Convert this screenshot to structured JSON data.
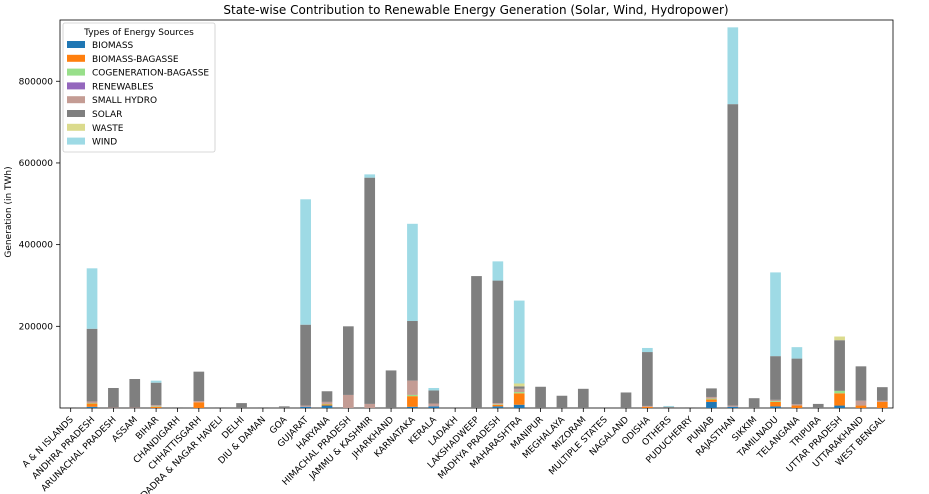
{
  "chart_data": {
    "type": "bar",
    "stacked": true,
    "title": "State-wise Contribution to Renewable Energy Generation (Solar, Wind, Hydropower)",
    "xlabel": "",
    "ylabel": "Generation (in TWh)",
    "ylim": [
      0,
      950000
    ],
    "yticks": [
      200000,
      400000,
      600000,
      800000
    ],
    "ytick_labels": [
      "200000",
      "400000",
      "600000",
      "800000"
    ],
    "grid": false,
    "legend_title": "Types of Energy Sources",
    "legend_position": "upper-left",
    "categories": [
      "A & N ISLANDS",
      "ANDHRA PRADESH",
      "ARUNACHAL PRADESH",
      "ASSAM",
      "BIHAR",
      "CHANDIGARH",
      "CHHATTISGARH",
      "DADRA & NAGAR HAVELI",
      "DELHI",
      "DIU & DAMAN",
      "GOA",
      "GUJARAT",
      "HARYANA",
      "HIMACHAL PRADESH",
      "JAMMU & KASHMIR",
      "JHARKHAND",
      "KARNATAKA",
      "KERALA",
      "LADAKH",
      "LAKSHADWEEP",
      "MADHYA PRADESH",
      "MAHARASHTRA",
      "MANIPUR",
      "MEGHALAYA",
      "MIZORAM",
      "MULTIPLE STATES",
      "NAGALAND",
      "ODISHA",
      "OTHERS",
      "PUDUCHERRY",
      "PUNJAB",
      "RAJASTHAN",
      "SIKKIM",
      "TAMILNADU",
      "TELANGANA",
      "TRIPURA",
      "UTTAR PRADESH",
      "UTTARAKHAND",
      "WEST BENGAL"
    ],
    "bar_categories": [
      "A & N ISLANDS",
      "ANDHRA PRADESH",
      "ARUNACHAL PRADESH",
      "ASSAM",
      "BIHAR",
      "CHANDIGARH",
      "CHHATTISGARH",
      "DADRA & NAGAR HAVELI",
      "DELHI",
      "DIU & DAMAN",
      "GOA",
      "GUJARAT",
      "HARYANA",
      "HIMACHAL PRADESH",
      "JAMMU & KASHMIR",
      "JHARKHAND",
      "KARNATAKA",
      "KERALA",
      "LADAKH",
      "LAKSHADWEEP",
      "MADHYA PRADESH",
      "MAHARASHTRA",
      "MANIPUR",
      "MEGHALAYA",
      "MIZORAM",
      "MULTIPLE STATES",
      "NAGALAND",
      "ODISHA",
      "OTHERS",
      "PUDUCHERRY",
      "PUNJAB",
      "RAJASTHAN",
      "SIKKIM",
      "TAMILNADU",
      "TELANGANA",
      "TRIPURA",
      "UTTAR PRADESH",
      "UTTARAKHAND",
      "WEST BENGAL"
    ],
    "series": [
      {
        "name": "BIOMASS",
        "color": "#1f77b4",
        "values": [
          0,
          3000,
          0,
          0,
          0,
          0,
          0,
          0,
          0,
          0,
          0,
          3000,
          6000,
          0,
          0,
          0,
          3000,
          4000,
          0,
          0,
          4000,
          8000,
          0,
          0,
          0,
          0,
          0,
          0,
          0,
          0,
          15000,
          3000,
          0,
          4000,
          0,
          0,
          6000,
          0,
          0
        ]
      },
      {
        "name": "BIOMASS-BAGASSE",
        "color": "#ff7f0e",
        "values": [
          0,
          8000,
          0,
          0,
          3000,
          0,
          14000,
          0,
          0,
          0,
          0,
          0,
          3000,
          0,
          0,
          0,
          26000,
          0,
          0,
          0,
          4000,
          28000,
          0,
          0,
          0,
          0,
          0,
          3000,
          0,
          0,
          6000,
          0,
          0,
          11000,
          6000,
          0,
          30000,
          6000,
          15000
        ]
      },
      {
        "name": "COGENERATION-BAGASSE",
        "color": "#98df8a",
        "values": [
          0,
          1000,
          0,
          0,
          1000,
          0,
          0,
          0,
          0,
          0,
          0,
          0,
          1000,
          0,
          0,
          0,
          3000,
          0,
          0,
          0,
          1000,
          3000,
          0,
          0,
          0,
          0,
          0,
          0,
          0,
          0,
          2000,
          0,
          0,
          2000,
          0,
          0,
          6000,
          0,
          0
        ]
      },
      {
        "name": "RENEWABLES",
        "color": "#9467bd",
        "values": [
          0,
          0,
          0,
          0,
          0,
          0,
          0,
          0,
          0,
          0,
          0,
          0,
          0,
          0,
          0,
          0,
          0,
          0,
          0,
          0,
          0,
          0,
          0,
          0,
          0,
          0,
          0,
          0,
          0,
          0,
          0,
          0,
          0,
          0,
          0,
          0,
          0,
          0,
          0
        ]
      },
      {
        "name": "SMALL HYDRO",
        "color": "#c49c94",
        "values": [
          0,
          4000,
          1000,
          1000,
          3000,
          0,
          3000,
          0,
          0,
          0,
          0,
          3000,
          5000,
          32000,
          10000,
          0,
          35000,
          7000,
          0,
          0,
          3000,
          8000,
          0,
          0,
          0,
          0,
          0,
          2000,
          0,
          0,
          4000,
          3000,
          0,
          3000,
          3000,
          0,
          0,
          12000,
          3000
        ]
      },
      {
        "name": "SOLAR",
        "color": "#7f7f7f",
        "values": [
          2000,
          178000,
          48000,
          70000,
          55000,
          2000,
          72000,
          2000,
          12000,
          2000,
          4000,
          198000,
          26000,
          168000,
          554000,
          92000,
          146000,
          32000,
          0,
          323000,
          300000,
          6000,
          52000,
          30000,
          47000,
          0,
          38000,
          132000,
          3000,
          2000,
          21000,
          738000,
          24000,
          107000,
          112000,
          10000,
          124000,
          84000,
          33000
        ]
      },
      {
        "name": "WASTE",
        "color": "#dbdb8d",
        "values": [
          0,
          0,
          0,
          0,
          0,
          0,
          0,
          0,
          0,
          0,
          0,
          0,
          0,
          0,
          0,
          0,
          0,
          0,
          0,
          0,
          0,
          7000,
          0,
          0,
          0,
          0,
          0,
          0,
          0,
          0,
          0,
          0,
          0,
          0,
          0,
          0,
          9000,
          0,
          0
        ]
      },
      {
        "name": "WIND",
        "color": "#9edae5",
        "values": [
          0,
          148000,
          0,
          0,
          5000,
          0,
          0,
          0,
          0,
          0,
          0,
          307000,
          0,
          0,
          8000,
          0,
          238000,
          6000,
          0,
          0,
          47000,
          203000,
          0,
          0,
          0,
          0,
          0,
          10000,
          2000,
          0,
          0,
          188000,
          0,
          205000,
          28000,
          0,
          0,
          0,
          0
        ]
      }
    ]
  }
}
